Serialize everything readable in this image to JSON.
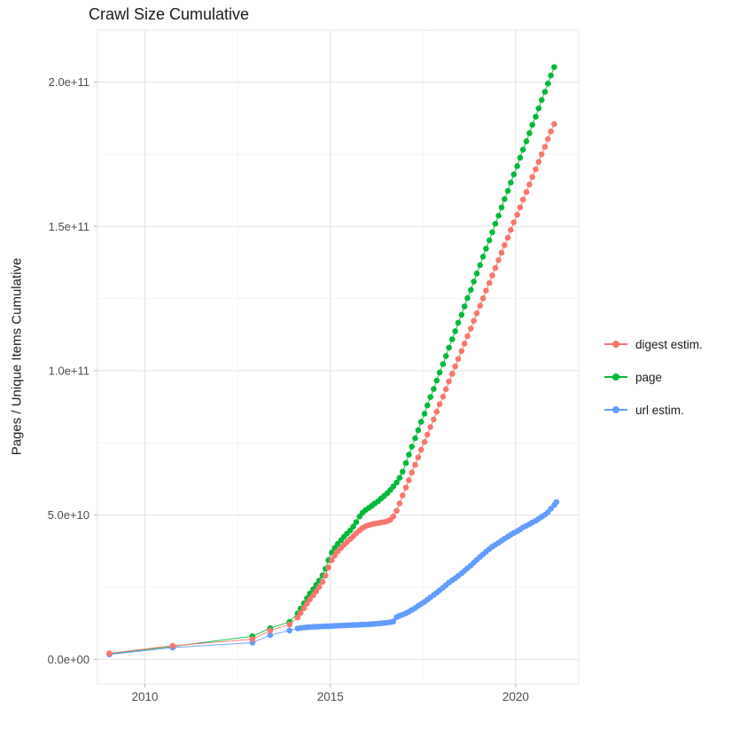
{
  "title": "Crawl Size Cumulative",
  "chart_data": {
    "type": "scatter",
    "title": "Crawl Size Cumulative",
    "xlabel": "",
    "ylabel": "Pages / Unique Items Cumulative",
    "value_scale": 1000000000.0,
    "xlim": [
      2008.72,
      2021.7
    ],
    "ylim": [
      -8.5,
      218
    ],
    "grid": true,
    "legend_position": "right",
    "x_ticks": [
      {
        "value": 2010,
        "label": "2010"
      },
      {
        "value": 2015,
        "label": "2015"
      },
      {
        "value": 2020,
        "label": "2020"
      }
    ],
    "x_minor_ticks": [
      2012.5,
      2017.5
    ],
    "y_ticks": [
      {
        "value": 0,
        "label": "0.0e+00"
      },
      {
        "value": 50,
        "label": "5.0e+10"
      },
      {
        "value": 100,
        "label": "1.0e+11"
      },
      {
        "value": 150,
        "label": "1.5e+11"
      },
      {
        "value": 200,
        "label": "2.0e+11"
      }
    ],
    "y_minor_ticks": [
      25,
      75,
      125,
      175
    ],
    "series": [
      {
        "name": "digest estim.",
        "color": "#F8766D",
        "points": [
          [
            2009.04,
            2.1
          ],
          [
            2010.75,
            4.7
          ],
          [
            2012.9,
            7.0
          ],
          [
            2013.38,
            10.0
          ],
          [
            2013.9,
            12.1
          ],
          [
            2014.12,
            14.5
          ],
          [
            2014.2,
            16.1
          ],
          [
            2014.29,
            17.7
          ],
          [
            2014.37,
            19.3
          ],
          [
            2014.45,
            20.8
          ],
          [
            2014.54,
            22.2
          ],
          [
            2014.62,
            23.6
          ],
          [
            2014.7,
            25.1
          ],
          [
            2014.79,
            26.8
          ],
          [
            2014.87,
            29.0
          ],
          [
            2014.95,
            31.8
          ],
          [
            2015.04,
            34.4
          ],
          [
            2015.12,
            36.0
          ],
          [
            2015.2,
            37.4
          ],
          [
            2015.29,
            38.6
          ],
          [
            2015.37,
            39.7
          ],
          [
            2015.45,
            40.7
          ],
          [
            2015.54,
            41.7
          ],
          [
            2015.62,
            42.7
          ],
          [
            2015.7,
            43.7
          ],
          [
            2015.79,
            44.7
          ],
          [
            2015.87,
            45.5
          ],
          [
            2015.95,
            46.1
          ],
          [
            2016.04,
            46.5
          ],
          [
            2016.12,
            46.8
          ],
          [
            2016.2,
            47.0
          ],
          [
            2016.29,
            47.2
          ],
          [
            2016.37,
            47.4
          ],
          [
            2016.45,
            47.6
          ],
          [
            2016.54,
            47.9
          ],
          [
            2016.62,
            48.4
          ],
          [
            2016.7,
            49.5
          ],
          [
            2016.79,
            51.5
          ],
          [
            2016.87,
            54.0
          ],
          [
            2016.95,
            56.8
          ],
          [
            2017.04,
            59.5
          ],
          [
            2017.12,
            62.1
          ],
          [
            2017.2,
            64.7
          ],
          [
            2017.29,
            67.4
          ],
          [
            2017.37,
            70.0
          ],
          [
            2017.45,
            72.6
          ],
          [
            2017.54,
            75.3
          ],
          [
            2017.62,
            77.9
          ],
          [
            2017.7,
            80.5
          ],
          [
            2017.79,
            83.1
          ],
          [
            2017.87,
            85.8
          ],
          [
            2017.95,
            88.4
          ],
          [
            2018.04,
            91.0
          ],
          [
            2018.12,
            93.6
          ],
          [
            2018.2,
            96.3
          ],
          [
            2018.29,
            98.9
          ],
          [
            2018.37,
            101.5
          ],
          [
            2018.45,
            104.1
          ],
          [
            2018.54,
            106.8
          ],
          [
            2018.62,
            109.4
          ],
          [
            2018.7,
            112.0
          ],
          [
            2018.79,
            114.6
          ],
          [
            2018.87,
            117.3
          ],
          [
            2018.95,
            119.9
          ],
          [
            2019.04,
            122.5
          ],
          [
            2019.12,
            125.1
          ],
          [
            2019.2,
            127.8
          ],
          [
            2019.29,
            130.4
          ],
          [
            2019.37,
            133.0
          ],
          [
            2019.45,
            135.6
          ],
          [
            2019.54,
            138.3
          ],
          [
            2019.62,
            140.9
          ],
          [
            2019.7,
            143.5
          ],
          [
            2019.79,
            146.1
          ],
          [
            2019.87,
            148.8
          ],
          [
            2019.95,
            151.4
          ],
          [
            2020.04,
            154.0
          ],
          [
            2020.12,
            156.6
          ],
          [
            2020.2,
            159.3
          ],
          [
            2020.29,
            161.9
          ],
          [
            2020.37,
            164.5
          ],
          [
            2020.45,
            167.1
          ],
          [
            2020.54,
            169.8
          ],
          [
            2020.62,
            172.4
          ],
          [
            2020.7,
            175.0
          ],
          [
            2020.79,
            177.6
          ],
          [
            2020.87,
            180.3
          ],
          [
            2020.95,
            182.9
          ],
          [
            2021.04,
            185.5
          ]
        ]
      },
      {
        "name": "page",
        "color": "#00BA38",
        "points": [
          [
            2009.04,
            1.9
          ],
          [
            2010.75,
            4.5
          ],
          [
            2012.9,
            8.0
          ],
          [
            2013.38,
            10.8
          ],
          [
            2013.9,
            13.0
          ],
          [
            2014.12,
            15.9
          ],
          [
            2014.2,
            17.6
          ],
          [
            2014.29,
            19.4
          ],
          [
            2014.37,
            21.2
          ],
          [
            2014.45,
            22.8
          ],
          [
            2014.54,
            24.3
          ],
          [
            2014.62,
            25.8
          ],
          [
            2014.7,
            27.3
          ],
          [
            2014.79,
            29.1
          ],
          [
            2014.87,
            31.4
          ],
          [
            2014.95,
            34.4
          ],
          [
            2015.04,
            37.0
          ],
          [
            2015.12,
            38.6
          ],
          [
            2015.2,
            40.0
          ],
          [
            2015.29,
            41.3
          ],
          [
            2015.37,
            42.5
          ],
          [
            2015.45,
            43.6
          ],
          [
            2015.54,
            44.7
          ],
          [
            2015.62,
            46.0
          ],
          [
            2015.7,
            47.6
          ],
          [
            2015.79,
            49.5
          ],
          [
            2015.87,
            50.8
          ],
          [
            2015.95,
            51.7
          ],
          [
            2016.04,
            52.5
          ],
          [
            2016.12,
            53.2
          ],
          [
            2016.2,
            54.0
          ],
          [
            2016.29,
            54.8
          ],
          [
            2016.37,
            55.7
          ],
          [
            2016.45,
            56.6
          ],
          [
            2016.54,
            57.6
          ],
          [
            2016.62,
            58.7
          ],
          [
            2016.7,
            59.9
          ],
          [
            2016.79,
            61.3
          ],
          [
            2016.87,
            62.9
          ],
          [
            2016.95,
            65.0
          ],
          [
            2017.04,
            68.0
          ],
          [
            2017.12,
            70.9
          ],
          [
            2017.2,
            73.7
          ],
          [
            2017.29,
            76.6
          ],
          [
            2017.37,
            79.4
          ],
          [
            2017.45,
            82.3
          ],
          [
            2017.54,
            85.1
          ],
          [
            2017.62,
            88.0
          ],
          [
            2017.7,
            90.9
          ],
          [
            2017.79,
            93.7
          ],
          [
            2017.87,
            96.6
          ],
          [
            2017.95,
            99.4
          ],
          [
            2018.04,
            102.3
          ],
          [
            2018.12,
            105.1
          ],
          [
            2018.2,
            108.0
          ],
          [
            2018.29,
            110.9
          ],
          [
            2018.37,
            113.7
          ],
          [
            2018.45,
            116.6
          ],
          [
            2018.54,
            119.4
          ],
          [
            2018.62,
            122.3
          ],
          [
            2018.7,
            125.2
          ],
          [
            2018.79,
            128.0
          ],
          [
            2018.87,
            130.9
          ],
          [
            2018.95,
            133.7
          ],
          [
            2019.04,
            136.6
          ],
          [
            2019.12,
            139.5
          ],
          [
            2019.2,
            142.3
          ],
          [
            2019.29,
            145.2
          ],
          [
            2019.37,
            148.0
          ],
          [
            2019.45,
            150.9
          ],
          [
            2019.54,
            153.7
          ],
          [
            2019.62,
            156.6
          ],
          [
            2019.7,
            159.5
          ],
          [
            2019.79,
            162.3
          ],
          [
            2019.87,
            165.2
          ],
          [
            2019.95,
            168.0
          ],
          [
            2020.04,
            170.9
          ],
          [
            2020.12,
            173.8
          ],
          [
            2020.2,
            176.6
          ],
          [
            2020.29,
            179.5
          ],
          [
            2020.37,
            182.3
          ],
          [
            2020.45,
            185.2
          ],
          [
            2020.54,
            188.0
          ],
          [
            2020.62,
            190.9
          ],
          [
            2020.7,
            193.8
          ],
          [
            2020.79,
            196.6
          ],
          [
            2020.87,
            199.5
          ],
          [
            2020.95,
            202.3
          ],
          [
            2021.04,
            205.2
          ]
        ]
      },
      {
        "name": "url estim.",
        "color": "#619CFF",
        "points": [
          [
            2009.04,
            1.7
          ],
          [
            2010.75,
            4.1
          ],
          [
            2012.9,
            5.8
          ],
          [
            2013.38,
            8.4
          ],
          [
            2013.9,
            10.0
          ],
          [
            2014.12,
            10.7
          ],
          [
            2014.2,
            10.9
          ],
          [
            2014.29,
            11.0
          ],
          [
            2014.37,
            11.1
          ],
          [
            2014.45,
            11.2
          ],
          [
            2014.54,
            11.25
          ],
          [
            2014.62,
            11.3
          ],
          [
            2014.7,
            11.35
          ],
          [
            2014.79,
            11.4
          ],
          [
            2014.87,
            11.45
          ],
          [
            2014.95,
            11.5
          ],
          [
            2015.04,
            11.55
          ],
          [
            2015.12,
            11.6
          ],
          [
            2015.2,
            11.65
          ],
          [
            2015.29,
            11.7
          ],
          [
            2015.37,
            11.75
          ],
          [
            2015.45,
            11.8
          ],
          [
            2015.54,
            11.85
          ],
          [
            2015.62,
            11.9
          ],
          [
            2015.7,
            11.95
          ],
          [
            2015.79,
            12.0
          ],
          [
            2015.87,
            12.05
          ],
          [
            2015.95,
            12.1
          ],
          [
            2016.04,
            12.15
          ],
          [
            2016.12,
            12.2
          ],
          [
            2016.2,
            12.3
          ],
          [
            2016.29,
            12.4
          ],
          [
            2016.37,
            12.5
          ],
          [
            2016.45,
            12.6
          ],
          [
            2016.54,
            12.7
          ],
          [
            2016.62,
            12.9
          ],
          [
            2016.7,
            13.1
          ],
          [
            2016.79,
            14.6
          ],
          [
            2016.87,
            15.1
          ],
          [
            2016.95,
            15.5
          ],
          [
            2017.04,
            16.0
          ],
          [
            2017.12,
            16.5
          ],
          [
            2017.2,
            17.1
          ],
          [
            2017.29,
            17.8
          ],
          [
            2017.37,
            18.5
          ],
          [
            2017.45,
            19.2
          ],
          [
            2017.54,
            19.9
          ],
          [
            2017.62,
            20.7
          ],
          [
            2017.7,
            21.5
          ],
          [
            2017.79,
            22.3
          ],
          [
            2017.87,
            23.1
          ],
          [
            2017.95,
            23.9
          ],
          [
            2018.04,
            24.8
          ],
          [
            2018.12,
            25.7
          ],
          [
            2018.2,
            26.6
          ],
          [
            2018.29,
            27.4
          ],
          [
            2018.37,
            28.1
          ],
          [
            2018.45,
            28.9
          ],
          [
            2018.54,
            29.8
          ],
          [
            2018.62,
            30.7
          ],
          [
            2018.7,
            31.6
          ],
          [
            2018.79,
            32.5
          ],
          [
            2018.87,
            33.5
          ],
          [
            2018.95,
            34.5
          ],
          [
            2019.04,
            35.5
          ],
          [
            2019.12,
            36.4
          ],
          [
            2019.2,
            37.3
          ],
          [
            2019.29,
            38.2
          ],
          [
            2019.37,
            39.0
          ],
          [
            2019.45,
            39.7
          ],
          [
            2019.54,
            40.4
          ],
          [
            2019.62,
            41.1
          ],
          [
            2019.7,
            41.8
          ],
          [
            2019.79,
            42.5
          ],
          [
            2019.87,
            43.2
          ],
          [
            2019.95,
            43.8
          ],
          [
            2020.04,
            44.4
          ],
          [
            2020.12,
            45.0
          ],
          [
            2020.2,
            45.7
          ],
          [
            2020.29,
            46.3
          ],
          [
            2020.37,
            46.8
          ],
          [
            2020.45,
            47.4
          ],
          [
            2020.54,
            48.0
          ],
          [
            2020.62,
            48.7
          ],
          [
            2020.7,
            49.4
          ],
          [
            2020.79,
            50.1
          ],
          [
            2020.87,
            51.0
          ],
          [
            2020.95,
            52.2
          ],
          [
            2021.04,
            53.5
          ],
          [
            2021.1,
            54.5
          ]
        ]
      }
    ]
  }
}
